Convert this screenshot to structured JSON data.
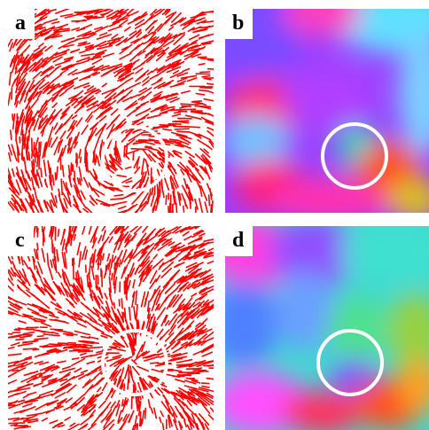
{
  "figure": {
    "panels": [
      {
        "label": "a",
        "kind": "streamlines",
        "color": "#ff0000"
      },
      {
        "label": "b",
        "kind": "orientation-colormap"
      },
      {
        "label": "c",
        "kind": "streamlines",
        "color": "#ff0000"
      },
      {
        "label": "d",
        "kind": "orientation-colormap"
      }
    ],
    "highlight_color": "#ffffff"
  }
}
